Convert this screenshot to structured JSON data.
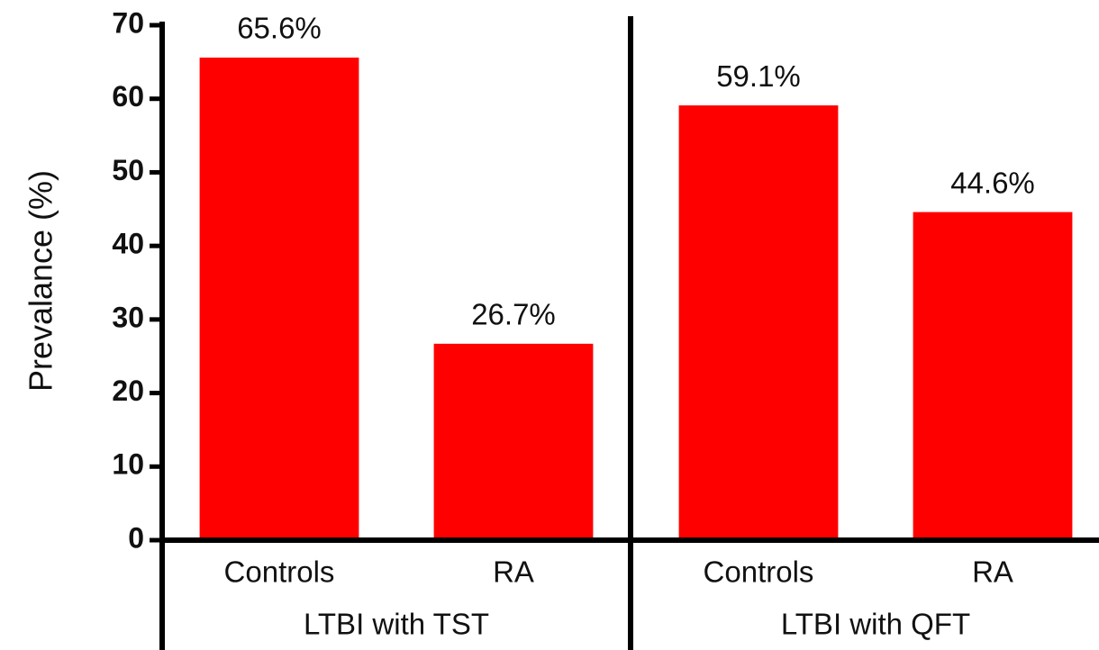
{
  "chart_data": {
    "type": "bar",
    "y_label": "Prevalance (%)",
    "color": "#ff0000",
    "ylim": [
      0,
      70
    ],
    "yticks": [
      0,
      10,
      20,
      30,
      40,
      50,
      60,
      70
    ],
    "groups": [
      {
        "name": "LTBI with TST",
        "categories": [
          "Controls",
          "RA"
        ],
        "values": [
          65.6,
          26.7
        ],
        "value_labels": [
          "65.6%",
          "26.7%"
        ]
      },
      {
        "name": "LTBI with QFT",
        "categories": [
          "Controls",
          "RA"
        ],
        "values": [
          59.1,
          44.6
        ],
        "value_labels": [
          "59.1%",
          "44.6%"
        ]
      }
    ]
  }
}
